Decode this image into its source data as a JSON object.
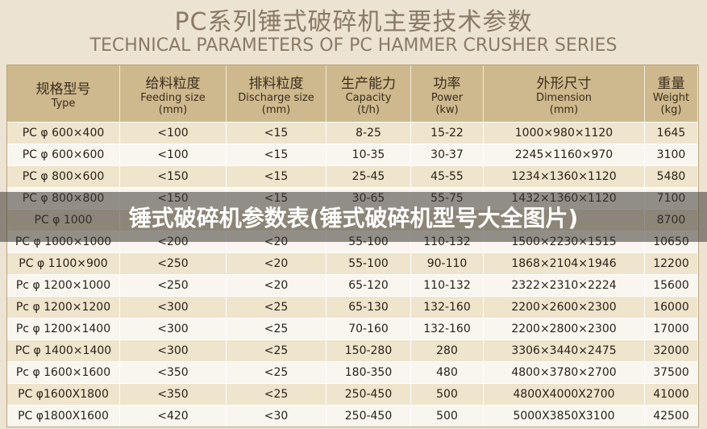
{
  "header": {
    "title_zh": "PC系列锤式破碎机主要技术参数",
    "title_en": "TECHNICAL PARAMETERS OF PC HAMMER CRUSHER SERIES"
  },
  "table": {
    "columns": [
      {
        "zh": "规格型号",
        "en": "Type"
      },
      {
        "zh": "给料粒度",
        "en": "Feeding size",
        "unit": "(mm)"
      },
      {
        "zh": "排料粒度",
        "en": "Discharge size",
        "unit": "(mm)"
      },
      {
        "zh": "生产能力",
        "en": "Capacity",
        "unit": "(t/h)"
      },
      {
        "zh": "功率",
        "en": "Power",
        "unit": "(kw)"
      },
      {
        "zh": "外形尺寸",
        "en": "Dimension",
        "unit": "(mm)"
      },
      {
        "zh": "重量",
        "en": "Weight",
        "unit": "(kg)"
      }
    ],
    "rows": [
      [
        "PC φ 600×400",
        "<100",
        "<15",
        "8-25",
        "15-22",
        "1000×980×1120",
        "1645"
      ],
      [
        "PC φ 600×600",
        "<100",
        "<15",
        "10-35",
        "30-37",
        "2245×1160×970",
        "3100"
      ],
      [
        "PC φ 800×600",
        "<150",
        "<15",
        "25-45",
        "45-55",
        "1234×1360×1120",
        "5480"
      ],
      [
        "PC φ 800×800",
        "<150",
        "<15",
        "30-65",
        "55-75",
        "1432×1360×1120",
        "7100"
      ],
      [
        "PC φ 1000",
        null,
        null,
        null,
        null,
        null,
        "8700"
      ],
      [
        "PC φ 1000×1000",
        "<200",
        "<20",
        "55-100",
        "110-132",
        "1500×2230×1515",
        "10650"
      ],
      [
        "PC φ 1100×900",
        "<250",
        "<20",
        "55-100",
        "90-110",
        "1868×2104×1946",
        "12200"
      ],
      [
        "Pc φ 1200×1000",
        "<250",
        "<20",
        "65-120",
        "110-132",
        "2322×2310×2224",
        "15600"
      ],
      [
        "Pc φ 1200×1200",
        "<300",
        "<25",
        "65-130",
        "132-160",
        "2200×2600×2300",
        "16000"
      ],
      [
        "Pc φ 1200×1400",
        "<300",
        "<25",
        "70-160",
        "132-160",
        "2200×2800×2300",
        "17000"
      ],
      [
        "PC φ 1400×1400",
        "<300",
        "<25",
        "150-280",
        "280",
        "3306×3440×2475",
        "32000"
      ],
      [
        "Pc φ 1600×1600",
        "<350",
        "<25",
        "180-350",
        "480",
        "4800×3780×2700",
        "37500"
      ],
      [
        "PC φ1600X1800",
        "<350",
        "<25",
        "250-450",
        "500",
        "4800X4000X2700",
        "41000"
      ],
      [
        "PC φ1800X1600",
        "<420",
        "<30",
        "250-450",
        "500",
        "5000X3850X3100",
        "42500"
      ]
    ]
  },
  "banner": {
    "text": "锤式破碎机参数表(锤式破碎机型号大全图片)"
  }
}
